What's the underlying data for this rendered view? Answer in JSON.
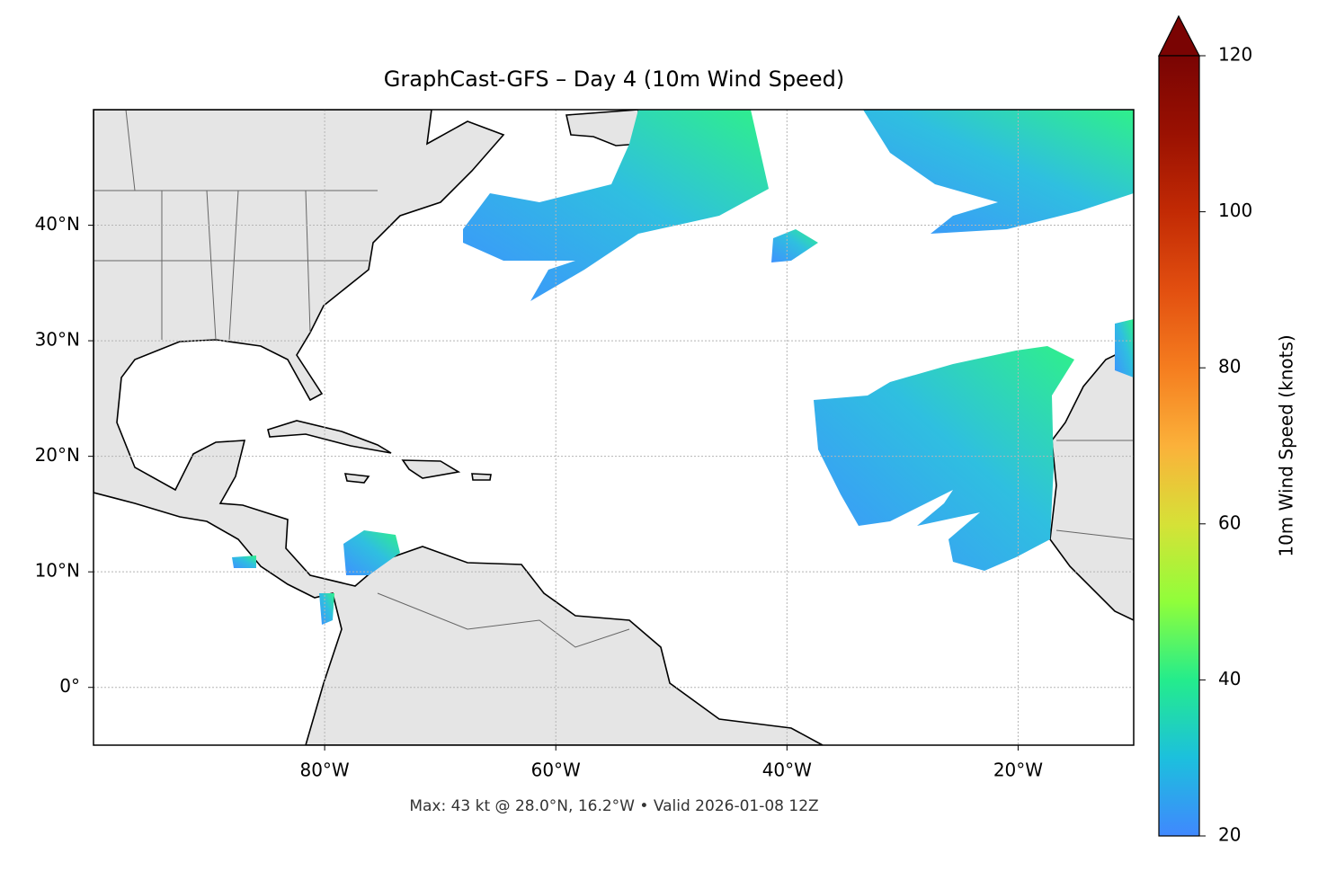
{
  "chart_data": {
    "type": "map",
    "title": "GraphCast-GFS – Day 4 (10m Wind Speed)",
    "footnote": "Max: 43 kt @ 28.0°N, 16.2°W • Valid 2026-01-08 12Z",
    "xlim": [
      -100,
      -10
    ],
    "ylim": [
      -5,
      50
    ],
    "xticks": [
      {
        "value": -80,
        "label": "80°W"
      },
      {
        "value": -60,
        "label": "60°W"
      },
      {
        "value": -40,
        "label": "40°W"
      },
      {
        "value": -20,
        "label": "20°W"
      }
    ],
    "yticks": [
      {
        "value": 0,
        "label": "0°"
      },
      {
        "value": 10,
        "label": "10°N"
      },
      {
        "value": 20,
        "label": "20°N"
      },
      {
        "value": 30,
        "label": "30°N"
      },
      {
        "value": 40,
        "label": "40°N"
      }
    ],
    "grid": true,
    "colorbar": {
      "label": "10m Wind Speed (knots)",
      "lim": [
        20,
        120
      ],
      "ticks": [
        20,
        40,
        60,
        80,
        100,
        120
      ]
    }
  }
}
